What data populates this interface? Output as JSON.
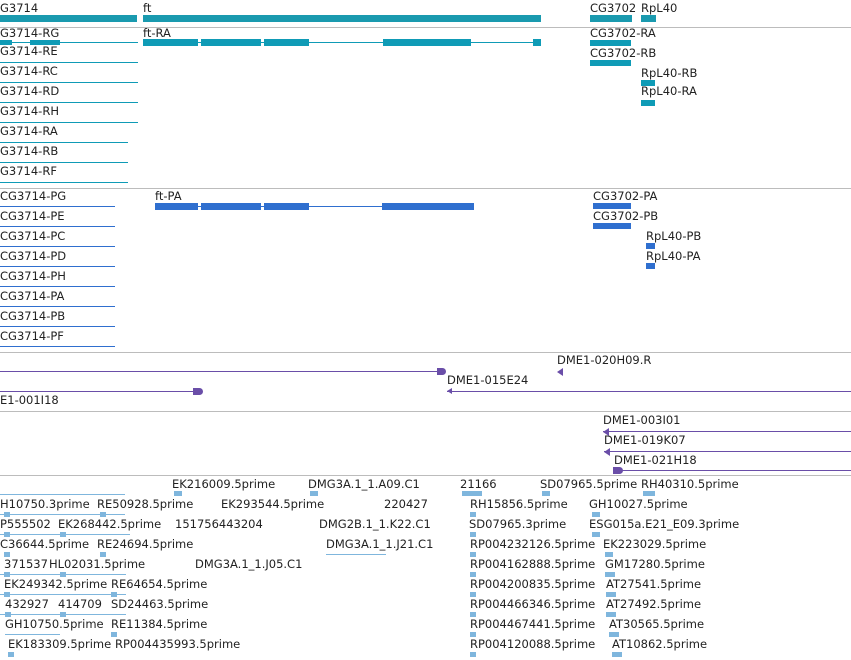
{
  "colors": {
    "gene": "#1a9aaf",
    "transcript": "#0f9bb6",
    "protein": "#2f6fcf",
    "est_track": "#6a4ea8",
    "cdna": "#7fb6dd"
  },
  "gene_track": {
    "genes": [
      "G3714",
      "ft",
      "CG3702",
      "RpL40"
    ]
  },
  "transcript_track": {
    "left_transcripts": [
      "G3714-RG",
      "G3714-RE",
      "G3714-RC",
      "G3714-RD",
      "G3714-RH",
      "G3714-RA",
      "G3714-RB",
      "G3714-RF"
    ],
    "ft_transcript": "ft-RA",
    "cg3702_transcripts": [
      "CG3702-RA",
      "CG3702-RB"
    ],
    "rpl40_transcripts": [
      "RpL40-RB",
      "RpL40-RA"
    ]
  },
  "protein_track": {
    "left_proteins": [
      "CG3714-PG",
      "CG3714-PE",
      "CG3714-PC",
      "CG3714-PD",
      "CG3714-PH",
      "CG3714-PA",
      "CG3714-PB",
      "CG3714-PF"
    ],
    "ft_protein": "ft-PA",
    "cg3702_proteins": [
      "CG3702-PA",
      "CG3702-PB"
    ],
    "rpl40_proteins": [
      "RpL40-PB",
      "RpL40-PA"
    ]
  },
  "est_track_1": {
    "labels": [
      "DME1-020H09.R",
      "DME1-015E24",
      "E1-001I18"
    ]
  },
  "est_track_2": {
    "labels": [
      "DME1-003I01",
      "DME1-019K07",
      "DME1-021H18"
    ]
  },
  "cdna_track": {
    "labels": [
      "EK216009.5prime",
      "DMG3A.1_1.A09.C1",
      "21166",
      "SD07965.5prime",
      "RH40310.5prime",
      "H10750.3prime",
      "RE50928.5prime",
      "EK293544.5prime",
      "220427",
      "RH15856.5prime",
      "GH10027.5prime",
      "P555502",
      "EK268442.5prime",
      "151756443204",
      "DMG2B.1_1.K22.C1",
      "SD07965.3prime",
      "ESG015a.E21_E09.3prime",
      "C36644.5prime",
      "RE24694.5prime",
      "DMG3A.1_1.J21.C1",
      "RP004232126.5prime",
      "EK223029.5prime",
      "371537",
      "HL02031.5prime",
      "DMG3A.1_1.J05.C1",
      "RP004162888.5prime",
      "GM17280.5prime",
      "EK249342.5prime",
      "RE64654.5prime",
      "RP004200835.5prime",
      "AT27541.5prime",
      "432927",
      "414709",
      "SD24463.5prime",
      "RP004466346.5prime",
      "AT27492.5prime",
      "GH10750.5prime",
      "RE11384.5prime",
      "RP004467441.5prime",
      "AT30565.5prime",
      "EK183309.5prime",
      "RP004435993.5prime",
      "RP004120088.5prime",
      "AT10862.5prime"
    ]
  }
}
